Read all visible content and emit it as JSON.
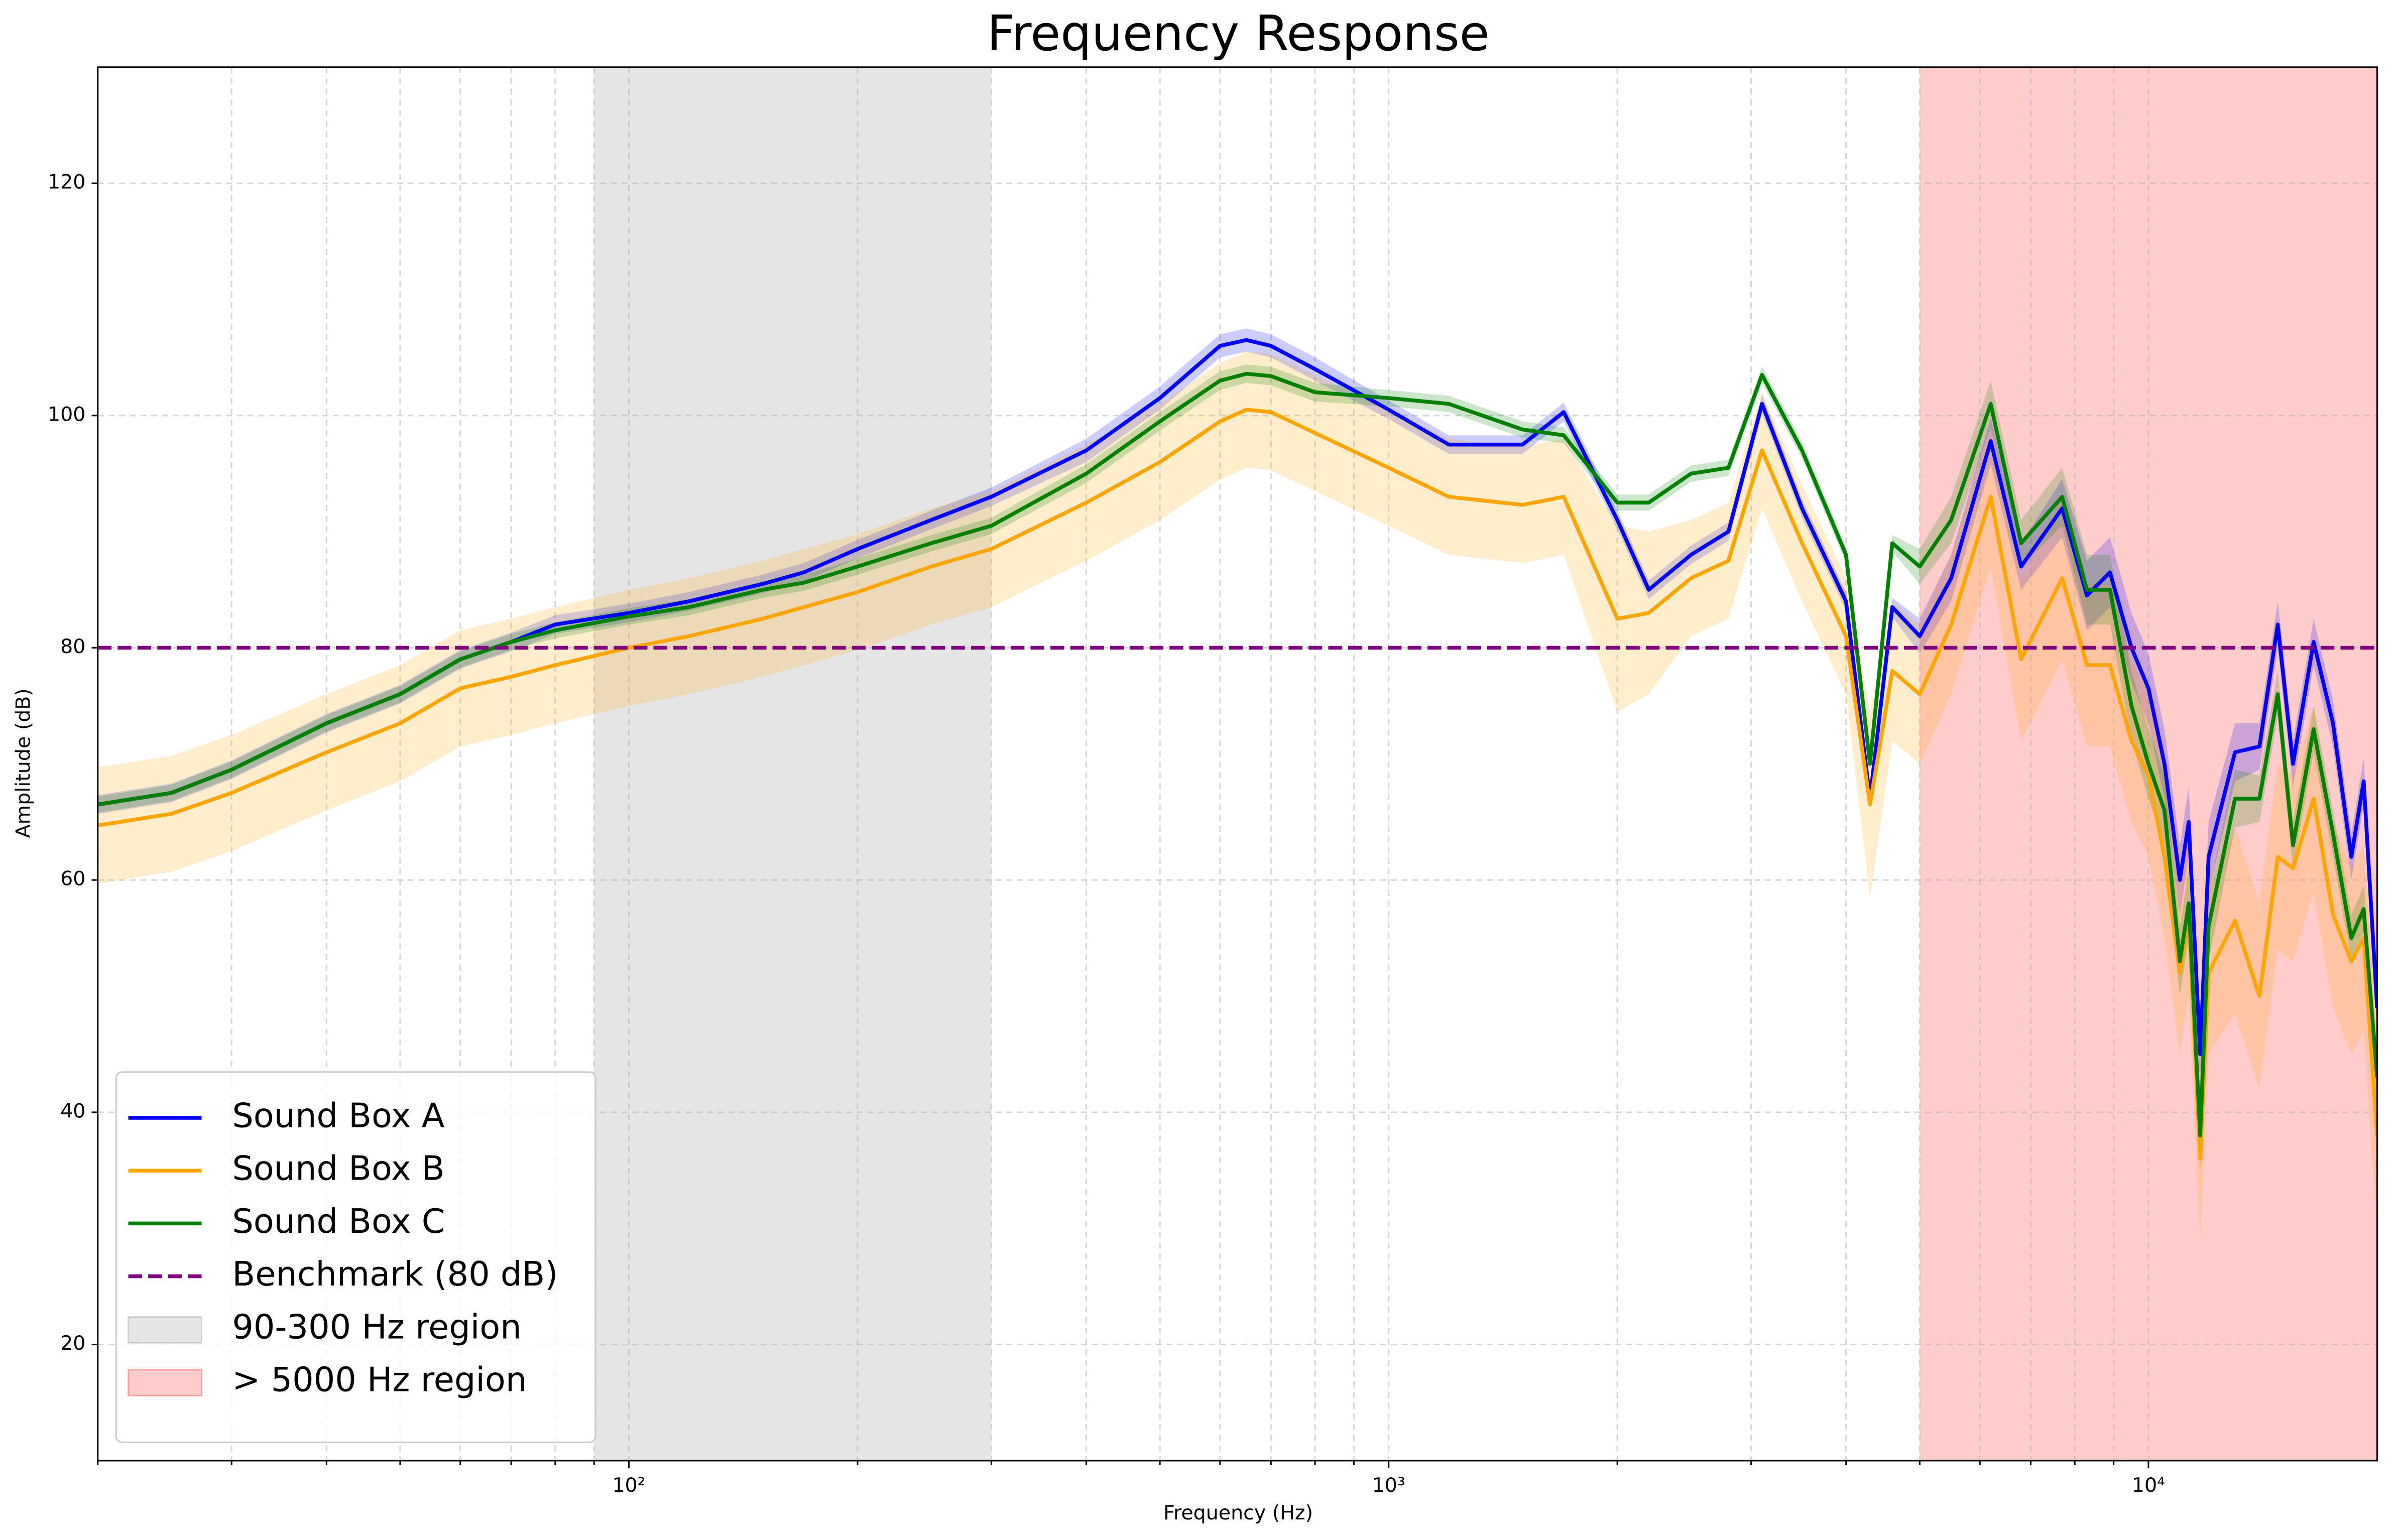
{
  "chart_data": {
    "type": "line",
    "title": "Frequency Response",
    "x_label": "Frequency (Hz)",
    "y_label": "Amplitude (dB)",
    "xscale": "log",
    "xlim": [
      20,
      20000
    ],
    "ylim": [
      10,
      130
    ],
    "xticks": [
      {
        "value": 100,
        "label": "10²"
      },
      {
        "value": 1000,
        "label": "10³"
      },
      {
        "value": 10000,
        "label": "10⁴"
      }
    ],
    "xminorticks": [
      20,
      30,
      40,
      50,
      60,
      70,
      80,
      90,
      200,
      300,
      400,
      500,
      600,
      700,
      800,
      900,
      2000,
      3000,
      4000,
      5000,
      6000,
      7000,
      8000,
      9000
    ],
    "yticks": [
      20,
      40,
      60,
      80,
      100,
      120
    ],
    "grid": true,
    "legend": "lower left",
    "x": [
      20,
      25,
      30,
      40,
      50,
      60,
      70,
      80,
      100,
      120,
      150,
      170,
      200,
      250,
      300,
      400,
      500,
      600,
      650,
      700,
      800,
      1000,
      1200,
      1500,
      1700,
      2000,
      2200,
      2500,
      2800,
      3100,
      3500,
      4000,
      4300,
      4600,
      5000,
      5500,
      6200,
      6800,
      7700,
      8300,
      8900,
      9500,
      10000,
      10500,
      11000,
      11300,
      11700,
      12000,
      13000,
      14000,
      14800,
      15500,
      16500,
      17500,
      18500,
      19200,
      20000
    ],
    "series": [
      {
        "name": "Sound Box A",
        "color": "#0000ff",
        "values": [
          66.5,
          67.5,
          69.5,
          73.5,
          76,
          79,
          80.5,
          82,
          83,
          84,
          85.5,
          86.5,
          88.5,
          91,
          93,
          97,
          101.5,
          106,
          106.5,
          106,
          104,
          100.5,
          97.5,
          97.5,
          100.3,
          91,
          85,
          88,
          90,
          101,
          92,
          84,
          67,
          83.5,
          81,
          86,
          97.8,
          87,
          92,
          84.5,
          86.5,
          80,
          76.5,
          70,
          60,
          65,
          45,
          62,
          71,
          71.5,
          82,
          70,
          80.5,
          73.5,
          62,
          68.5,
          49
        ],
        "errors": [
          0.8,
          0.8,
          0.8,
          0.8,
          0.8,
          0.8,
          0.8,
          0.8,
          0.8,
          0.8,
          0.8,
          0.8,
          0.8,
          0.8,
          0.8,
          1,
          1,
          1,
          1,
          1,
          1,
          0.8,
          0.8,
          0.8,
          0.8,
          0.8,
          0.8,
          0.8,
          0.8,
          0.8,
          0.8,
          0.8,
          0.8,
          0.8,
          1.5,
          2,
          2,
          2,
          2.5,
          3,
          3,
          3,
          3,
          3,
          3,
          3,
          3,
          3,
          2.5,
          2,
          2,
          2,
          2,
          2,
          2,
          2,
          2
        ]
      },
      {
        "name": "Sound Box B",
        "color": "#ffa500",
        "values": [
          64.7,
          65.7,
          67.5,
          71,
          73.5,
          76.5,
          77.5,
          78.5,
          80,
          81,
          82.5,
          83.5,
          84.8,
          87,
          88.5,
          92.5,
          96,
          99.5,
          100.5,
          100.3,
          98.5,
          95.5,
          93,
          92.3,
          93,
          82.5,
          83,
          86,
          87.5,
          97,
          89,
          81,
          66.5,
          78,
          76,
          82,
          93,
          79,
          86,
          78.5,
          78.5,
          72,
          69,
          62,
          52,
          57,
          36,
          52,
          56.5,
          50,
          62,
          61,
          67,
          57,
          53,
          55,
          38
        ],
        "errors": [
          5,
          5,
          5,
          5,
          5,
          5,
          5,
          5,
          5,
          5,
          5,
          5,
          5,
          5,
          5,
          5,
          5,
          5,
          5,
          5,
          5,
          5,
          5,
          5,
          5,
          8,
          7,
          5,
          5,
          5,
          5,
          5,
          8,
          6,
          6,
          6,
          6,
          7,
          7,
          7,
          7,
          7,
          7,
          7,
          7,
          7,
          7,
          7,
          8,
          8,
          8,
          8,
          8,
          8,
          8,
          8,
          8
        ]
      },
      {
        "name": "Sound Box C",
        "color": "#008000",
        "values": [
          66.5,
          67.5,
          69.5,
          73.5,
          76,
          79,
          80.5,
          81.5,
          82.7,
          83.5,
          85,
          85.6,
          87,
          89,
          90.5,
          95,
          99.5,
          103,
          103.6,
          103.4,
          102,
          101.5,
          101,
          98.8,
          98.3,
          92.5,
          92.5,
          95,
          95.5,
          103.5,
          97,
          88,
          70,
          89,
          87,
          91,
          101,
          89,
          93,
          85,
          85,
          75,
          70,
          66,
          53,
          58,
          38,
          56,
          67,
          67,
          76,
          63,
          73,
          64,
          55,
          57.5,
          43
        ],
        "errors": [
          0.7,
          0.7,
          0.7,
          0.7,
          0.7,
          0.7,
          0.7,
          0.7,
          0.7,
          0.7,
          0.7,
          0.7,
          0.7,
          0.7,
          0.7,
          0.8,
          0.8,
          0.8,
          0.8,
          0.8,
          0.8,
          0.7,
          0.7,
          0.7,
          0.7,
          0.7,
          0.7,
          0.7,
          0.7,
          0.7,
          0.7,
          0.7,
          0.7,
          0.7,
          1.5,
          2,
          2,
          2,
          2.5,
          3,
          3,
          3,
          3,
          3,
          3,
          3,
          3,
          3,
          2.5,
          2,
          2,
          2,
          2,
          2,
          2,
          2,
          2
        ]
      }
    ],
    "benchmark": {
      "name": "Benchmark (80 dB)",
      "value": 80,
      "color": "#800080"
    },
    "regions": [
      {
        "name": "90-300 Hz region",
        "range": [
          90,
          300
        ],
        "color": "#808080"
      },
      {
        "name": "> 5000 Hz region",
        "range": [
          5000,
          20000
        ],
        "color": "#ff0000"
      }
    ]
  }
}
